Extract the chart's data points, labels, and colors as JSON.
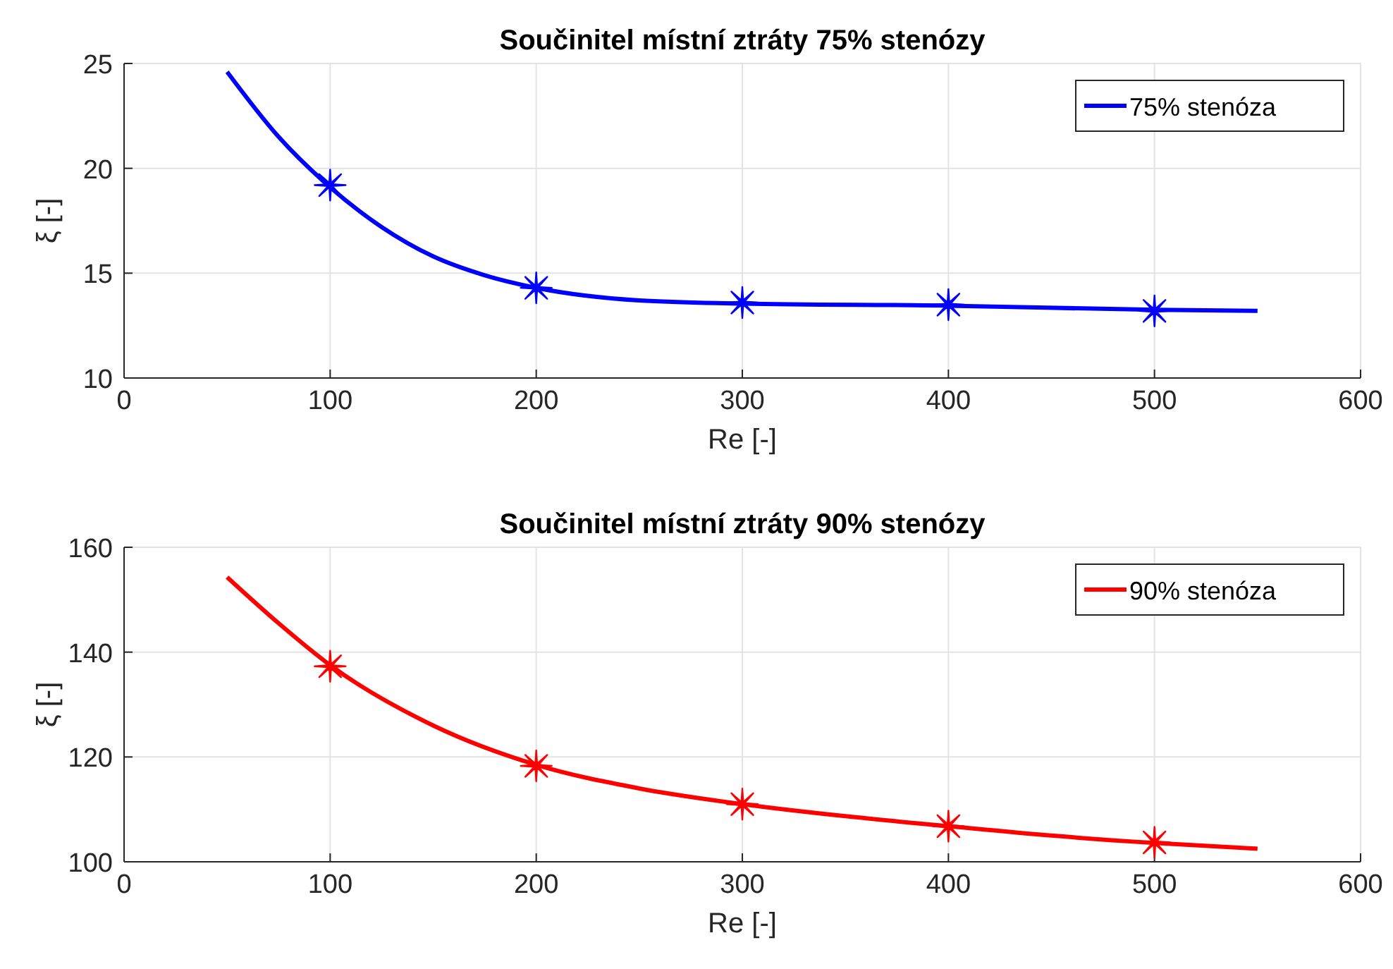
{
  "chart_data": [
    {
      "type": "line",
      "title": "Součinitel místní ztráty 75% stenózy",
      "xlabel": "Re [-]",
      "ylabel": "ξ [-]",
      "xlim": [
        0,
        600
      ],
      "xticks": [
        0,
        100,
        200,
        300,
        400,
        500,
        600
      ],
      "ylim": [
        10,
        25
      ],
      "yticks": [
        10,
        15,
        20,
        25
      ],
      "grid": true,
      "legend": "top right",
      "series": [
        {
          "name": "75% stenóza",
          "color": "#0000ff",
          "marker": "none",
          "x": [
            50,
            75,
            100,
            125,
            150,
            175,
            200,
            250,
            300,
            400,
            500,
            550
          ],
          "values": [
            24.6,
            21.5,
            19.1,
            17.2,
            15.8,
            14.9,
            14.3,
            13.7,
            13.55,
            13.45,
            13.25,
            13.2
          ]
        },
        {
          "type": "scatter",
          "color": "#0000ff",
          "marker": "star",
          "x": [
            100,
            200,
            300,
            400,
            500
          ],
          "values": [
            19.2,
            14.3,
            13.6,
            13.5,
            13.2
          ]
        }
      ]
    },
    {
      "type": "line",
      "title": "Součinitel místní ztráty 90% stenózy",
      "xlabel": "Re [-]",
      "ylabel": "ξ [-]",
      "xlim": [
        0,
        600
      ],
      "xticks": [
        0,
        100,
        200,
        300,
        400,
        500,
        600
      ],
      "ylim": [
        100,
        160
      ],
      "yticks": [
        100,
        120,
        140,
        160
      ],
      "grid": true,
      "legend": "top right",
      "series": [
        {
          "name": "90% stenóza",
          "color": "#ff0000",
          "marker": "none",
          "x": [
            50,
            75,
            100,
            150,
            200,
            250,
            300,
            350,
            400,
            450,
            500,
            550
          ],
          "values": [
            154.3,
            145.5,
            137.5,
            126,
            118.5,
            114,
            111,
            108.7,
            106.8,
            105,
            103.6,
            102.5
          ]
        },
        {
          "type": "scatter",
          "color": "#ff0000",
          "marker": "star",
          "x": [
            100,
            200,
            300,
            400,
            500
          ],
          "values": [
            137.3,
            118.3,
            111,
            106.8,
            103.7
          ]
        }
      ]
    }
  ]
}
